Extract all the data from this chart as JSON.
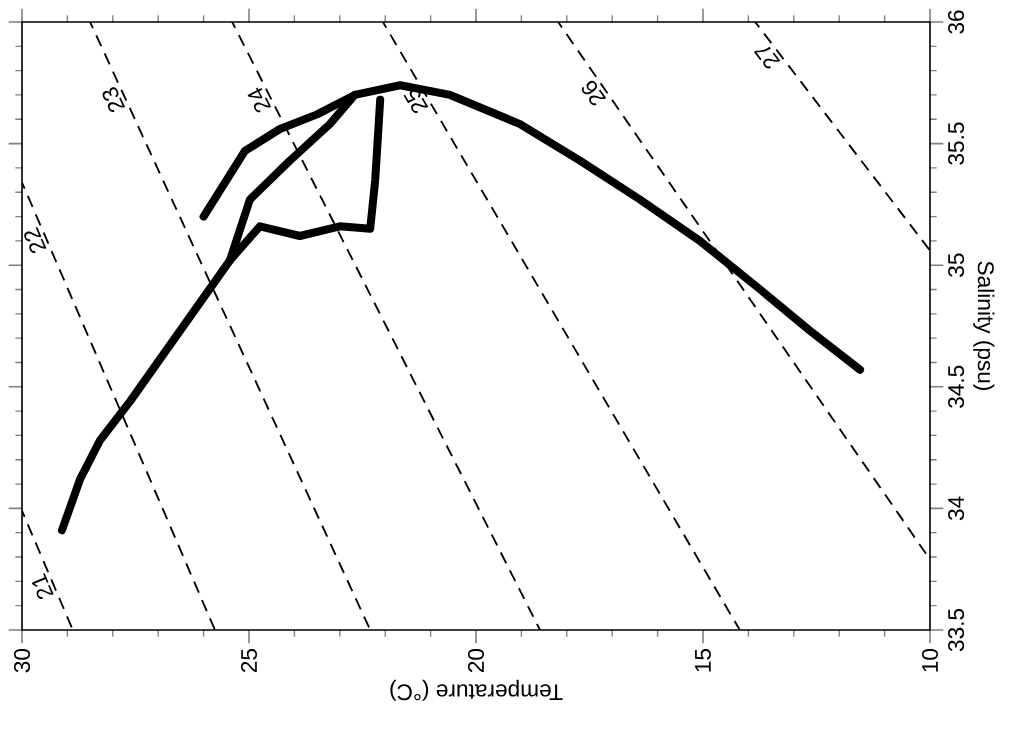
{
  "chart_data": {
    "type": "line",
    "xlabel": "Temperature (°C)",
    "ylabel": "Salinity (psu)",
    "xlim": [
      30,
      10
    ],
    "ylim": [
      33.5,
      36
    ],
    "xticks": [
      30,
      25,
      20,
      15,
      10
    ],
    "yticks": [
      33.5,
      34,
      34.5,
      35,
      35.5,
      36
    ],
    "marker": "none",
    "series": [
      {
        "color": "#000000",
        "x": [
          29.12,
          28.72,
          28.28,
          27.62,
          26.52,
          25.42,
          24.98,
          24.1,
          23.22,
          22.67,
          21.67,
          20.57,
          19.03,
          17.71,
          16.39,
          15.07,
          13.74,
          12.64,
          11.54
        ],
        "values": [
          33.91,
          34.12,
          34.28,
          34.44,
          34.73,
          35.02,
          35.27,
          35.43,
          35.58,
          35.7,
          35.74,
          35.7,
          35.58,
          35.43,
          35.27,
          35.1,
          34.9,
          34.73,
          34.57
        ]
      },
      {
        "color": "#000000",
        "x": [
          25.42,
          24.76,
          23.88,
          23.0,
          22.33,
          22.22,
          22.11
        ],
        "values": [
          35.02,
          35.16,
          35.12,
          35.16,
          35.15,
          35.35,
          35.68
        ]
      },
      {
        "color": "#000000",
        "x": [
          26.0,
          25.09,
          24.32,
          23.5,
          22.67
        ],
        "values": [
          35.2,
          35.47,
          35.56,
          35.62,
          35.7
        ]
      },
      {
        "name": "21",
        "color": "#000000",
        "line_style": "dashed",
        "x": [
          30,
          28.88
        ],
        "values": [
          33.99,
          33.5
        ]
      },
      {
        "name": "22",
        "color": "#000000",
        "line_style": "dashed",
        "x": [
          30,
          25.75
        ],
        "values": [
          35.34,
          33.5
        ]
      },
      {
        "name": "23",
        "color": "#000000",
        "line_style": "dashed",
        "x": [
          28.5,
          22.33
        ],
        "values": [
          36,
          33.5
        ]
      },
      {
        "name": "24",
        "color": "#000000",
        "line_style": "dashed",
        "x": [
          25.37,
          18.59
        ],
        "values": [
          36,
          33.5
        ]
      },
      {
        "name": "25",
        "color": "#000000",
        "line_style": "dashed",
        "x": [
          22.05,
          14.19
        ],
        "values": [
          36,
          33.5
        ]
      },
      {
        "name": "26",
        "color": "#000000",
        "line_style": "dashed",
        "x": [
          18.19,
          10
        ],
        "values": [
          36,
          33.79
        ]
      },
      {
        "name": "27",
        "color": "#000000",
        "line_style": "dashed",
        "x": [
          13.85,
          10
        ],
        "values": [
          36,
          35.06
        ]
      }
    ]
  }
}
